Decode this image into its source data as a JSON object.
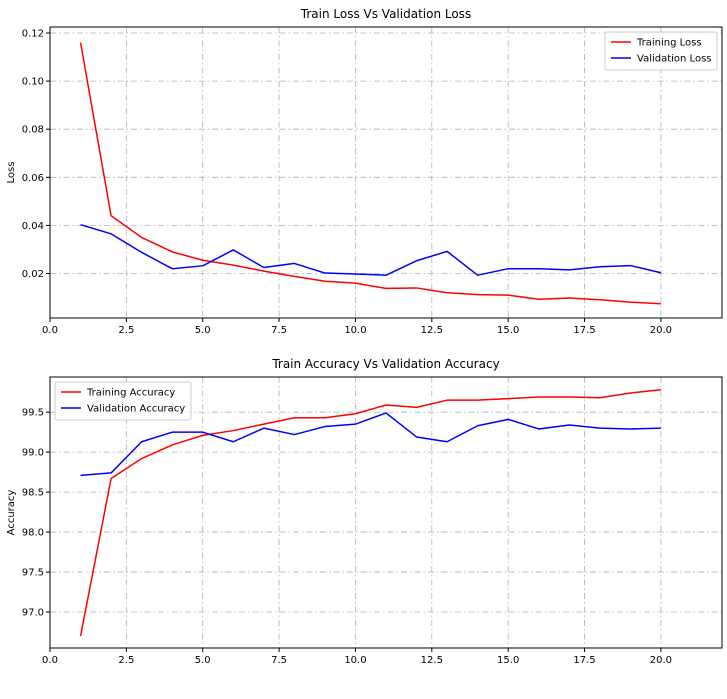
{
  "chart_data": [
    {
      "type": "line",
      "title": "Train Loss Vs Validation Loss",
      "xlabel": "",
      "ylabel": "Loss",
      "xlim": [
        0,
        22
      ],
      "ylim": [
        0.0015,
        0.1225
      ],
      "xticks": [
        0.0,
        2.5,
        5.0,
        7.5,
        10.0,
        12.5,
        15.0,
        17.5,
        20.0
      ],
      "xtick_labels": [
        "0.0",
        "2.5",
        "5.0",
        "7.5",
        "10.0",
        "12.5",
        "15.0",
        "17.5",
        "20.0"
      ],
      "yticks": [
        0.02,
        0.04,
        0.06,
        0.08,
        0.1,
        0.12
      ],
      "ytick_labels": [
        "0.02",
        "0.04",
        "0.06",
        "0.08",
        "0.10",
        "0.12"
      ],
      "grid": true,
      "legend_position": "top-right",
      "x": [
        1,
        2,
        3,
        4,
        5,
        6,
        7,
        8,
        9,
        10,
        11,
        12,
        13,
        14,
        15,
        16,
        17,
        18,
        19,
        20
      ],
      "series": [
        {
          "name": "Training Loss",
          "color": "#ff0000",
          "values": [
            0.116,
            0.044,
            0.035,
            0.029,
            0.0255,
            0.0235,
            0.021,
            0.0188,
            0.0168,
            0.016,
            0.0138,
            0.014,
            0.012,
            0.0112,
            0.011,
            0.0093,
            0.0098,
            0.0091,
            0.0081,
            0.0074
          ]
        },
        {
          "name": "Validation Loss",
          "color": "#0000ff",
          "values": [
            0.0403,
            0.0365,
            0.0288,
            0.022,
            0.0232,
            0.0298,
            0.0225,
            0.0242,
            0.0202,
            0.0198,
            0.0193,
            0.0253,
            0.0292,
            0.0193,
            0.022,
            0.022,
            0.0215,
            0.0228,
            0.0233,
            0.0203
          ]
        }
      ]
    },
    {
      "type": "line",
      "title": "Train Accuracy Vs Validation Accuracy",
      "xlabel": "",
      "ylabel": "Accuracy",
      "xlim": [
        0,
        22
      ],
      "ylim": [
        96.55,
        99.94
      ],
      "xticks": [
        0.0,
        2.5,
        5.0,
        7.5,
        10.0,
        12.5,
        15.0,
        17.5,
        20.0
      ],
      "xtick_labels": [
        "0.0",
        "2.5",
        "5.0",
        "7.5",
        "10.0",
        "12.5",
        "15.0",
        "17.5",
        "20.0"
      ],
      "yticks": [
        97.0,
        97.5,
        98.0,
        98.5,
        99.0,
        99.5
      ],
      "ytick_labels": [
        "97.0",
        "97.5",
        "98.0",
        "98.5",
        "99.0",
        "99.5"
      ],
      "grid": true,
      "legend_position": "top-left",
      "x": [
        1,
        2,
        3,
        4,
        5,
        6,
        7,
        8,
        9,
        10,
        11,
        12,
        13,
        14,
        15,
        16,
        17,
        18,
        19,
        20
      ],
      "series": [
        {
          "name": "Training Accuracy",
          "color": "#ff0000",
          "values": [
            96.7,
            98.67,
            98.92,
            99.09,
            99.21,
            99.27,
            99.35,
            99.43,
            99.43,
            99.48,
            99.59,
            99.56,
            99.65,
            99.65,
            99.67,
            99.69,
            99.69,
            99.68,
            99.74,
            99.78
          ]
        },
        {
          "name": "Validation Accuracy",
          "color": "#0000ff",
          "values": [
            98.71,
            98.74,
            99.13,
            99.25,
            99.25,
            99.13,
            99.3,
            99.22,
            99.32,
            99.35,
            99.49,
            99.19,
            99.13,
            99.33,
            99.41,
            99.29,
            99.34,
            99.3,
            99.29,
            99.3
          ]
        }
      ]
    }
  ]
}
